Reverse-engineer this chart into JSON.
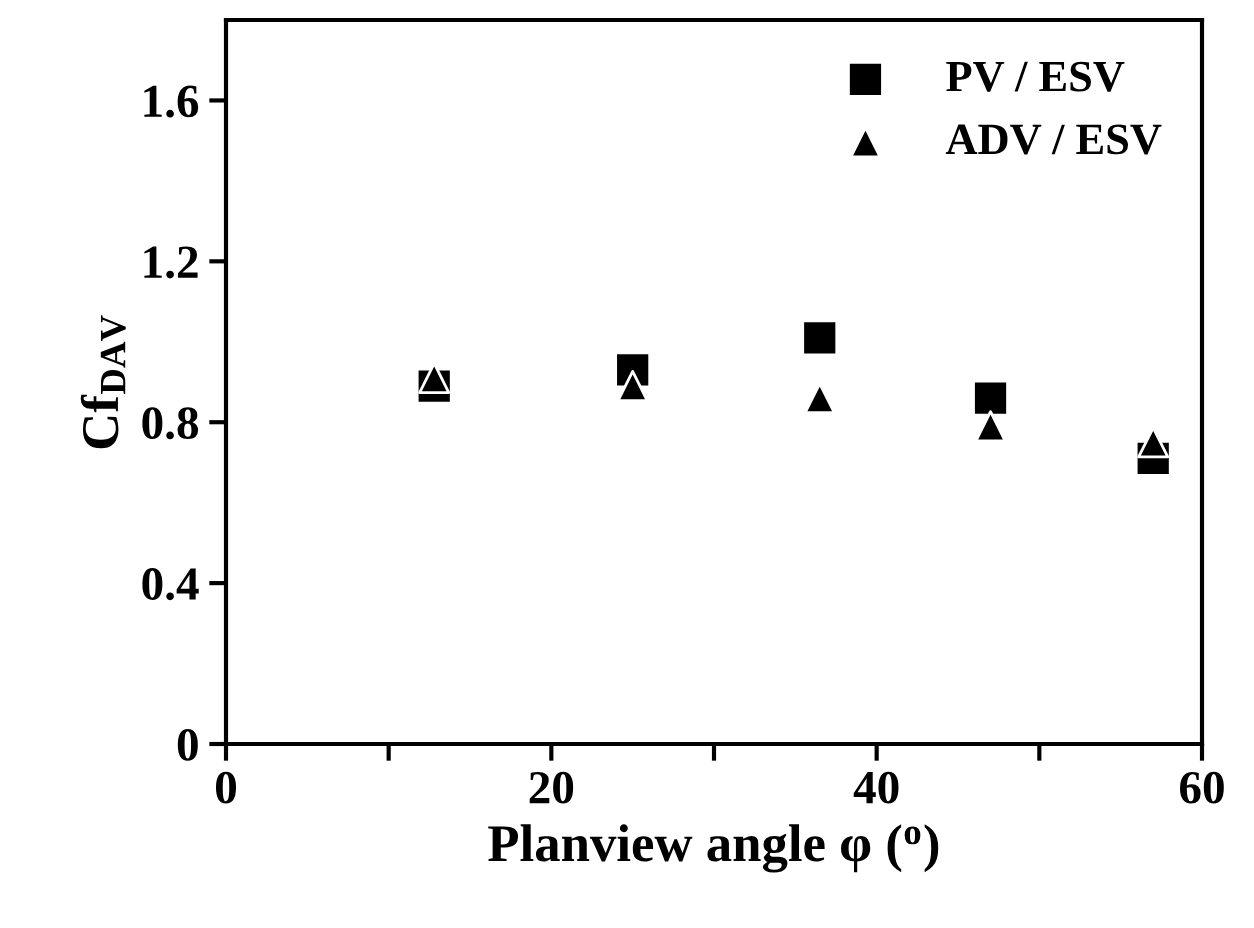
{
  "chart_data": {
    "type": "scatter",
    "xlabel": "Planview angle φ ($^{o}$)",
    "ylabel": "Cf$_{DAV}$",
    "x": [
      12.8,
      25,
      36.5,
      47,
      57
    ],
    "series": [
      {
        "name": "PV / ESV",
        "color": "#000000",
        "marker": "square",
        "values": [
          0.89,
          0.93,
          1.01,
          0.86,
          0.71
        ]
      },
      {
        "name": "ADV / ESV",
        "color": "#000000",
        "marker": "triangle",
        "values": [
          0.91,
          0.89,
          0.86,
          0.79,
          0.75
        ]
      }
    ],
    "xlim": [
      0,
      60
    ],
    "ylim": [
      0,
      1.8
    ],
    "xticks": [
      0,
      {
        "value": 10,
        "label": null
      },
      20,
      {
        "value": 30,
        "label": null
      },
      40,
      {
        "value": 50,
        "label": null
      },
      60
    ],
    "yticks": [
      0,
      0.4,
      0.8,
      1.2,
      1.6
    ],
    "grid": false,
    "legend": "top right"
  }
}
